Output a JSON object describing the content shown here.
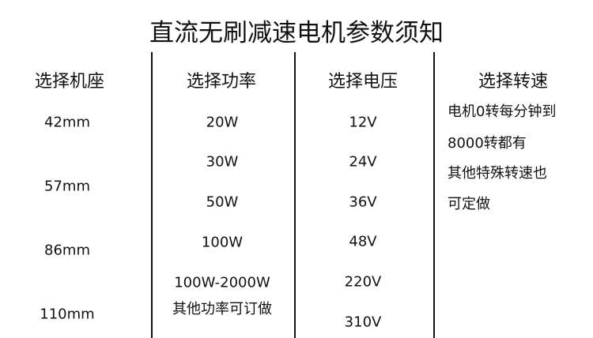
{
  "title": "直流无刷减速电机参数须知",
  "columns": [
    {
      "header": "选择机座",
      "values": [
        "42mm",
        "57mm",
        "86mm",
        "110mm"
      ]
    },
    {
      "header": "选择功率",
      "values": [
        "20W",
        "30W",
        "50W",
        "100W",
        "100W-2000W",
        "其他功率可订做"
      ]
    },
    {
      "header": "选择电压",
      "values": [
        "12V",
        "24V",
        "36V",
        "48V",
        "220V",
        "310V"
      ]
    },
    {
      "header": "选择转速",
      "values": [
        "电机0转每分钟到",
        "8000转都有",
        "其他特殊转速也",
        "可定做"
      ]
    }
  ]
}
